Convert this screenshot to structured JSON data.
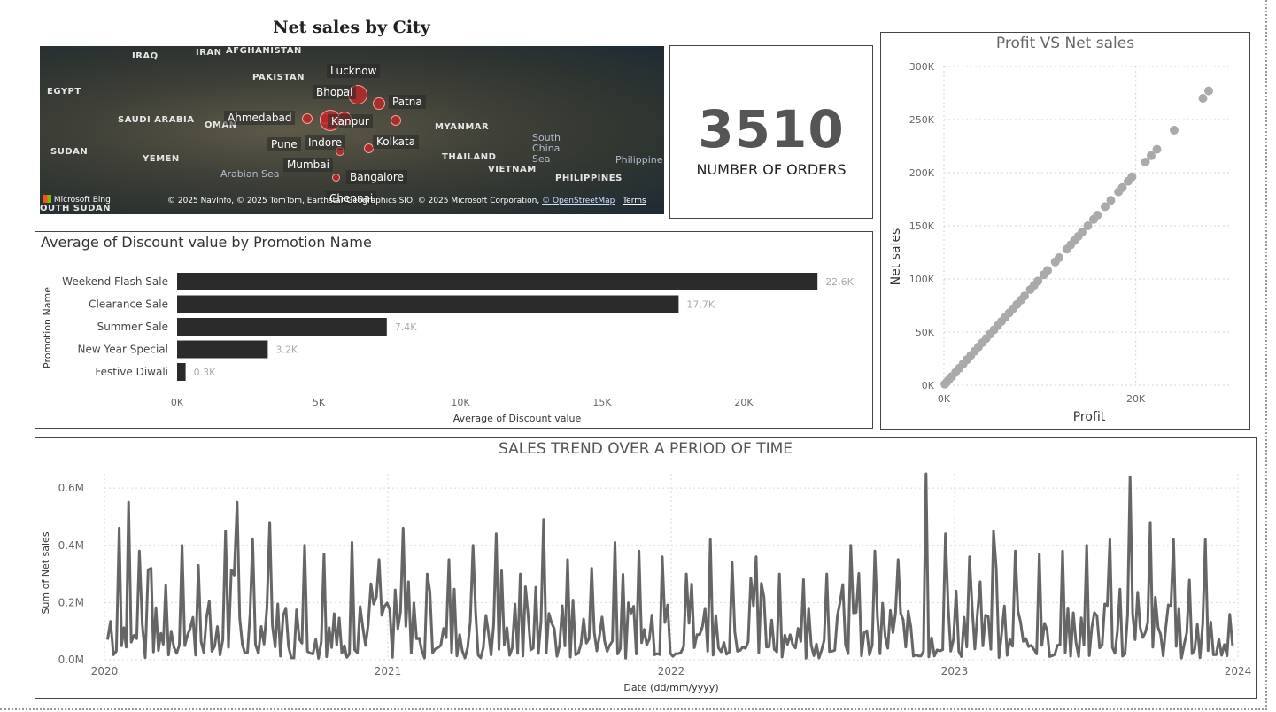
{
  "map": {
    "title": "Net sales by City",
    "countries": [
      "IRAQ",
      "IRAN",
      "AFGHANISTAN",
      "PAKISTAN",
      "EGYPT",
      "SAUDI ARABIA",
      "OMAN",
      "SUDAN",
      "YEMEN",
      "MYANMAR",
      "THAILAND",
      "VIETNAM",
      "PHILIPPINES",
      "OUTH SUDAN"
    ],
    "seas": [
      "Arabian Sea",
      "South China Sea",
      "Philippine"
    ],
    "cities": [
      "Lucknow",
      "Bhopal",
      "Patna",
      "Ahmedabad",
      "Kanpur",
      "Pune",
      "Indore",
      "Kolkata",
      "Mumbai",
      "Bangalore",
      "Chennai"
    ],
    "bing_label": "Microsoft Bing",
    "copyright": "© 2025 NavInfo, © 2025 TomTom, Earthstar Geographics SIO, © 2025 Microsoft Corporation,",
    "osm_link": "© OpenStreetMap",
    "terms_link": "Terms",
    "bubble_color": "#be2828"
  },
  "kpi": {
    "value": "3510",
    "label": "NUMBER OF ORDERS"
  },
  "charts": {
    "discount": {
      "title": "Average of Discount value by Promotion Name",
      "xlabel": "Average of Discount value",
      "ylabel": "Promotion Name",
      "xticks": [
        "0K",
        "5K",
        "10K",
        "15K",
        "20K"
      ]
    },
    "scatter": {
      "title": "Profit VS Net sales",
      "xlabel": "Profit",
      "ylabel": "Net sales",
      "xticks": [
        "0K",
        "20K"
      ],
      "yticks": [
        "0K",
        "50K",
        "100K",
        "150K",
        "200K",
        "250K",
        "300K"
      ]
    },
    "trend": {
      "title": "SALES TREND OVER A PERIOD OF TIME",
      "xlabel": "Date (dd/mm/yyyy)",
      "ylabel": "Sum of Net sales",
      "xticks": [
        "2020",
        "2021",
        "2022",
        "2023",
        "2024"
      ],
      "yticks": [
        "0.0M",
        "0.2M",
        "0.4M",
        "0.6M"
      ]
    }
  },
  "chart_data": [
    {
      "type": "bar",
      "orientation": "horizontal",
      "categories": [
        "Weekend Flash Sale",
        "Clearance Sale",
        "Summer Sale",
        "New Year Special",
        "Festive Diwali"
      ],
      "values": [
        22.6,
        17.7,
        7.4,
        3.2,
        0.3
      ],
      "data_labels": [
        "22.6K",
        "17.7K",
        "7.4K",
        "3.2K",
        "0.3K"
      ],
      "unit": "K",
      "xlim": [
        0,
        23
      ],
      "bar_color": "#2b2b2b"
    },
    {
      "type": "scatter",
      "xlim": [
        0,
        30
      ],
      "ylim": [
        0,
        300
      ],
      "unit": "K",
      "marker_color": "#aaaaaa",
      "points": [
        [
          27.6,
          277
        ],
        [
          27.0,
          270
        ],
        [
          24.0,
          240
        ],
        [
          22.2,
          222
        ],
        [
          21.6,
          216
        ],
        [
          21.0,
          210
        ],
        [
          19.6,
          196
        ],
        [
          19.2,
          192
        ],
        [
          18.6,
          186
        ],
        [
          18.2,
          182
        ],
        [
          17.4,
          174
        ],
        [
          16.8,
          168
        ],
        [
          16.0,
          160
        ],
        [
          15.6,
          156
        ],
        [
          15.0,
          150
        ],
        [
          14.4,
          144
        ],
        [
          14.0,
          140
        ],
        [
          13.6,
          136
        ],
        [
          13.2,
          132
        ],
        [
          12.8,
          128
        ],
        [
          12.0,
          120
        ],
        [
          11.6,
          116
        ],
        [
          10.8,
          108
        ],
        [
          10.4,
          104
        ],
        [
          9.8,
          98
        ],
        [
          9.4,
          94
        ],
        [
          9.0,
          90
        ],
        [
          8.4,
          84
        ],
        [
          8.0,
          80
        ],
        [
          7.6,
          76
        ],
        [
          7.2,
          72
        ],
        [
          6.8,
          68
        ],
        [
          6.4,
          64
        ],
        [
          6.0,
          60
        ],
        [
          5.6,
          56
        ],
        [
          5.2,
          52
        ],
        [
          4.8,
          48
        ],
        [
          4.4,
          44
        ],
        [
          4.0,
          40
        ],
        [
          3.6,
          36
        ],
        [
          3.2,
          32
        ],
        [
          2.8,
          28
        ],
        [
          2.4,
          24
        ],
        [
          2.0,
          20
        ],
        [
          1.6,
          16
        ],
        [
          1.2,
          12
        ],
        [
          0.8,
          8
        ],
        [
          0.5,
          5
        ],
        [
          0.3,
          3
        ],
        [
          0.1,
          1
        ]
      ]
    },
    {
      "type": "line",
      "x_range": [
        "2020-01-01",
        "2024-01-01"
      ],
      "ylim": [
        0,
        0.65
      ],
      "unit": "M",
      "line_color": "#666666",
      "peaks": [
        [
          "2020-01-05",
          0.07
        ],
        [
          "2020-01-20",
          0.46
        ],
        [
          "2020-02-01",
          0.55
        ],
        [
          "2020-02-15",
          0.38
        ],
        [
          "2020-03-01",
          0.32
        ],
        [
          "2020-03-20",
          0.26
        ],
        [
          "2020-04-10",
          0.4
        ],
        [
          "2020-05-01",
          0.33
        ],
        [
          "2020-06-05",
          0.45
        ],
        [
          "2020-06-20",
          0.55
        ],
        [
          "2020-07-10",
          0.42
        ],
        [
          "2020-08-01",
          0.48
        ],
        [
          "2020-09-15",
          0.4
        ],
        [
          "2020-10-10",
          0.37
        ],
        [
          "2020-11-15",
          0.41
        ],
        [
          "2020-12-20",
          0.35
        ],
        [
          "2021-01-20",
          0.46
        ],
        [
          "2021-02-20",
          0.3
        ],
        [
          "2021-03-20",
          0.35
        ],
        [
          "2021-04-20",
          0.4
        ],
        [
          "2021-05-20",
          0.44
        ],
        [
          "2021-06-20",
          0.3
        ],
        [
          "2021-07-20",
          0.49
        ],
        [
          "2021-08-20",
          0.35
        ],
        [
          "2021-09-20",
          0.32
        ],
        [
          "2021-10-20",
          0.41
        ],
        [
          "2021-11-20",
          0.38
        ],
        [
          "2021-12-20",
          0.36
        ],
        [
          "2022-01-20",
          0.3
        ],
        [
          "2022-02-20",
          0.42
        ],
        [
          "2022-03-20",
          0.34
        ],
        [
          "2022-04-20",
          0.36
        ],
        [
          "2022-05-20",
          0.3
        ],
        [
          "2022-06-20",
          0.28
        ],
        [
          "2022-07-20",
          0.3
        ],
        [
          "2022-08-20",
          0.4
        ],
        [
          "2022-09-20",
          0.38
        ],
        [
          "2022-10-20",
          0.35
        ],
        [
          "2022-11-25",
          0.65
        ],
        [
          "2022-12-20",
          0.44
        ],
        [
          "2023-01-20",
          0.36
        ],
        [
          "2023-02-20",
          0.45
        ],
        [
          "2023-03-20",
          0.38
        ],
        [
          "2023-04-20",
          0.37
        ],
        [
          "2023-05-20",
          0.38
        ],
        [
          "2023-06-20",
          0.4
        ],
        [
          "2023-07-20",
          0.42
        ],
        [
          "2023-08-15",
          0.64
        ],
        [
          "2023-09-10",
          0.48
        ],
        [
          "2023-10-10",
          0.42
        ],
        [
          "2023-11-20",
          0.42
        ],
        [
          "2023-12-25",
          0.05
        ]
      ]
    }
  ]
}
